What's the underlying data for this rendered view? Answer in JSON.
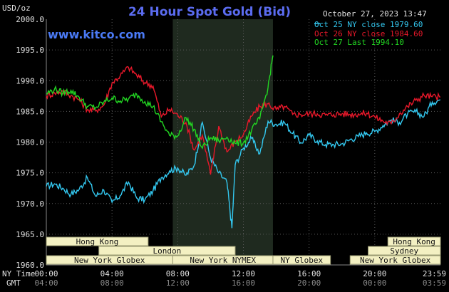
{
  "chart_data": {
    "type": "line",
    "title": "24 Hour Spot Gold (Bid)",
    "brand": "www.kitco.com",
    "unit_label": "USD/oz",
    "timestamp": "October 27, 2023 13:47",
    "ylim": [
      1960,
      2000
    ],
    "yticks": [
      "2000.0",
      "1995.0",
      "1990.0",
      "1985.0",
      "1980.0",
      "1975.0",
      "1970.0",
      "1965.0",
      "1960.0"
    ],
    "y_gridlines": [
      1995,
      1990,
      1985,
      1980,
      1975,
      1970,
      1965
    ],
    "x_range_hours": [
      0,
      24
    ],
    "x_label_1": "NY Time",
    "x_label_2": "GMT",
    "xticks_ny": [
      "00:00",
      "04:00",
      "08:00",
      "12:00",
      "16:00",
      "20:00",
      "23:59"
    ],
    "xticks_gmt": [
      "04:00",
      "08:00",
      "12:00",
      "16:00",
      "20:00",
      "00:00",
      "03:59"
    ],
    "shaded_range": [
      7.7,
      13.8
    ],
    "legend": [
      {
        "label": "Oct 25 NY close 1979.60",
        "color": "#33c8f0"
      },
      {
        "label": "Oct 26 NY close 1984.60",
        "color": "#e8182a"
      },
      {
        "label": "Oct 27 Last 1994.10",
        "color": "#22d622"
      }
    ],
    "sessions": [
      {
        "label": "Hong Kong",
        "start": 0,
        "end": 6.2,
        "row": 0
      },
      {
        "label": "Hong Kong",
        "start": 20.8,
        "end": 24,
        "row": 0
      },
      {
        "label": "London",
        "start": 3.2,
        "end": 11.5,
        "row": 1
      },
      {
        "label": "Sydney",
        "start": 19.6,
        "end": 24,
        "row": 1
      },
      {
        "label": "New York Globex",
        "start": 0,
        "end": 7.7,
        "row": 2
      },
      {
        "label": "New York NYMEX",
        "start": 7.7,
        "end": 13.8,
        "row": 2
      },
      {
        "label": "NY Globex",
        "start": 13.8,
        "end": 17.3,
        "row": 2
      },
      {
        "label": "New York Globex",
        "start": 18.5,
        "end": 24,
        "row": 2
      }
    ],
    "series": [
      {
        "name": "Oct 25 NY close 1979.60",
        "color": "#33c8f0",
        "x": [
          0,
          0.5,
          1,
          1.5,
          2,
          2.5,
          3,
          3.5,
          4,
          4.5,
          5,
          5.5,
          6,
          6.5,
          7,
          7.5,
          8,
          8.5,
          9,
          9.5,
          10,
          10.5,
          11,
          11.3,
          11.5,
          12,
          12.5,
          13,
          13.5,
          14,
          14.5,
          15,
          15.5,
          16,
          16.5,
          17,
          17.5,
          18,
          18.5,
          19,
          19.5,
          20,
          20.5,
          21,
          21.5,
          22,
          22.5,
          23,
          23.5,
          23.99
        ],
        "values": [
          1972.8,
          1973.2,
          1972.5,
          1971.5,
          1972.3,
          1974.2,
          1971.2,
          1972.2,
          1970.2,
          1971.3,
          1973.5,
          1970.9,
          1970.6,
          1972.1,
          1974.2,
          1975.3,
          1975.8,
          1974.6,
          1976.2,
          1983.2,
          1977.4,
          1975.0,
          1973.4,
          1966.0,
          1976.3,
          1979.0,
          1980.6,
          1978.1,
          1983.4,
          1982.9,
          1983.2,
          1981.4,
          1979.9,
          1981.1,
          1980.2,
          1979.6,
          1979.6,
          1979.7,
          1980.4,
          1980.9,
          1981.5,
          1981.7,
          1982.7,
          1983.6,
          1983.2,
          1984.6,
          1984.9,
          1984.2,
          1986.5,
          1986.9
        ]
      },
      {
        "name": "Oct 26 NY close 1984.60",
        "color": "#e8182a",
        "x": [
          0,
          0.5,
          1,
          1.5,
          2,
          2.5,
          3,
          3.5,
          4,
          4.5,
          5,
          5.5,
          6,
          6.5,
          7,
          7.5,
          8,
          8.5,
          9,
          9.5,
          10,
          10.5,
          11,
          11.5,
          12,
          12.5,
          13,
          13.5,
          14,
          14.5,
          15,
          15.5,
          16,
          16.5,
          17,
          17.5,
          18,
          18.5,
          19,
          19.5,
          20,
          20.5,
          21,
          21.5,
          22,
          22.5,
          23,
          23.5,
          23.99
        ],
        "values": [
          1987.5,
          1988.0,
          1988.3,
          1987.6,
          1986.9,
          1985.3,
          1985.1,
          1986.0,
          1989.6,
          1990.8,
          1992.2,
          1990.9,
          1989.7,
          1989.1,
          1984.1,
          1985.3,
          1984.4,
          1983.2,
          1978.7,
          1981.1,
          1974.7,
          1982.6,
          1978.4,
          1980.1,
          1981.2,
          1984.2,
          1985.8,
          1986.2,
          1985.3,
          1985.8,
          1984.5,
          1984.5,
          1984.6,
          1984.6,
          1984.4,
          1984.5,
          1984.6,
          1984.5,
          1984.6,
          1984.7,
          1984.1,
          1983.4,
          1983.0,
          1984.6,
          1985.8,
          1986.8,
          1987.6,
          1987.4,
          1987.3
        ]
      },
      {
        "name": "Oct 27 Last 1994.10",
        "color": "#22d622",
        "x": [
          0,
          0.5,
          1,
          1.5,
          2,
          2.5,
          3,
          3.5,
          4,
          4.5,
          5,
          5.5,
          6,
          6.5,
          7,
          7.5,
          8,
          8.5,
          9,
          9.5,
          10,
          10.5,
          11,
          11.5,
          12,
          12.5,
          13,
          13.5,
          13.8
        ],
        "values": [
          1987.9,
          1988.6,
          1988.0,
          1988.4,
          1987.3,
          1985.8,
          1985.6,
          1986.5,
          1987.2,
          1986.7,
          1987.0,
          1987.8,
          1986.6,
          1985.8,
          1983.3,
          1981.1,
          1981.0,
          1984.0,
          1982.1,
          1979.0,
          1980.7,
          1980.2,
          1980.8,
          1979.8,
          1979.9,
          1981.9,
          1983.8,
          1988.9,
          1994.1
        ]
      }
    ]
  }
}
